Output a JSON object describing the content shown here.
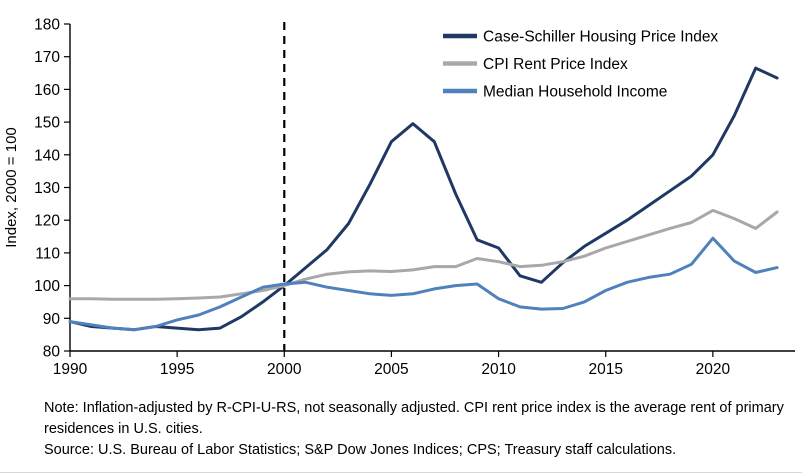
{
  "chart_data": {
    "type": "line",
    "title": "",
    "xlabel": "",
    "ylabel": "Index, 2000 = 100",
    "xlim": [
      1990,
      2023.6
    ],
    "ylim": [
      80,
      180
    ],
    "x_ticks": [
      1990,
      1995,
      2000,
      2005,
      2010,
      2015,
      2020
    ],
    "y_ticks": [
      80,
      90,
      100,
      110,
      120,
      130,
      140,
      150,
      160,
      170,
      180
    ],
    "grid": false,
    "legend_position": "top-right",
    "reference_line_x": 2000,
    "x": [
      1990,
      1991,
      1992,
      1993,
      1994,
      1995,
      1996,
      1997,
      1998,
      1999,
      2000,
      2001,
      2002,
      2003,
      2004,
      2005,
      2006,
      2007,
      2008,
      2009,
      2010,
      2011,
      2012,
      2013,
      2014,
      2015,
      2016,
      2017,
      2018,
      2019,
      2020,
      2021,
      2022,
      2023
    ],
    "series": [
      {
        "name": "Case-Schiller Housing Price Index",
        "color": "#1f3864",
        "values": [
          89,
          87.5,
          87,
          86.5,
          87.5,
          87,
          86.5,
          87,
          90.5,
          95,
          100,
          105.5,
          111,
          119,
          131,
          144,
          149.5,
          144,
          128,
          114,
          111.5,
          103,
          101,
          107,
          112,
          116,
          120,
          124.5,
          129,
          133.5,
          140,
          152,
          166.5,
          163.5
        ]
      },
      {
        "name": "CPI Rent Price Index",
        "color": "#a8a8a8",
        "values": [
          96,
          96,
          95.8,
          95.8,
          95.8,
          96,
          96.2,
          96.5,
          97.5,
          98.5,
          100,
          102,
          103.5,
          104.2,
          104.5,
          104.3,
          104.8,
          105.8,
          105.8,
          108.3,
          107.3,
          105.8,
          106.2,
          107.3,
          109,
          111.5,
          113.5,
          115.5,
          117.5,
          119.3,
          123,
          120.5,
          117.5,
          122.5
        ]
      },
      {
        "name": "Median Household Income",
        "color": "#4f81bd",
        "values": [
          89,
          88,
          87,
          86.5,
          87.5,
          89.5,
          91,
          93.5,
          96.5,
          99.5,
          100.5,
          101,
          99.5,
          98.5,
          97.5,
          97,
          97.5,
          99,
          100,
          100.5,
          96,
          93.5,
          92.8,
          93,
          95,
          98.5,
          101,
          102.5,
          103.5,
          106.5,
          114.5,
          107.5,
          104,
          105.5
        ]
      }
    ]
  },
  "notes": {
    "note": "Note: Inflation-adjusted by R-CPI-U-RS, not seasonally adjusted. CPI rent price index is the average rent of primary residences in U.S. cities.",
    "source": "Source: U.S. Bureau of Labor Statistics; S&P Dow Jones Indices; CPS; Treasury staff calculations."
  }
}
